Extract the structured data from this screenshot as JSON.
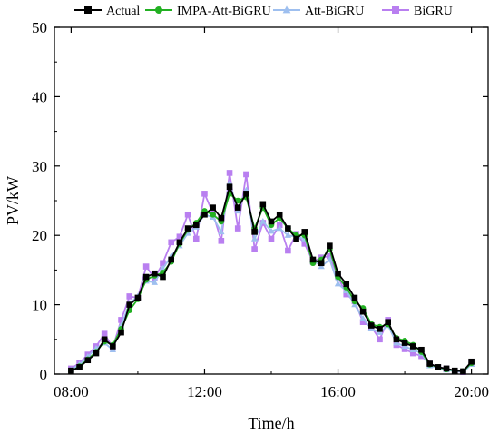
{
  "chart_data": {
    "type": "line",
    "title": "",
    "xlabel": "Time/h",
    "ylabel": "PV/kW",
    "xlim": [
      "07:30",
      "20:30"
    ],
    "ylim": [
      0,
      50
    ],
    "xticks": [
      "08:00",
      "12:00",
      "16:00",
      "20:00"
    ],
    "yticks": [
      0,
      10,
      20,
      30,
      40,
      50
    ],
    "grid": false,
    "legend": "top",
    "x": [
      "08:00",
      "08:15",
      "08:30",
      "08:45",
      "09:00",
      "09:15",
      "09:30",
      "09:45",
      "10:00",
      "10:15",
      "10:30",
      "10:45",
      "11:00",
      "11:15",
      "11:30",
      "11:45",
      "12:00",
      "12:15",
      "12:30",
      "12:45",
      "13:00",
      "13:15",
      "13:30",
      "13:45",
      "14:00",
      "14:15",
      "14:30",
      "14:45",
      "15:00",
      "15:15",
      "15:30",
      "15:45",
      "16:00",
      "16:15",
      "16:30",
      "16:45",
      "17:00",
      "17:15",
      "17:30",
      "17:45",
      "18:00",
      "18:15",
      "18:30",
      "18:45",
      "19:00",
      "19:15",
      "19:30",
      "19:45",
      "20:00"
    ],
    "series": [
      {
        "name": "Actual",
        "color": "#000000",
        "marker": "square",
        "values": [
          0.5,
          1.0,
          2.0,
          3.0,
          5.0,
          4.0,
          6.0,
          10.0,
          11.0,
          14.0,
          14.5,
          14.0,
          16.5,
          19.0,
          21.0,
          21.5,
          23.0,
          24.0,
          22.5,
          27.0,
          24.0,
          26.0,
          20.5,
          24.5,
          22.0,
          23.0,
          21.0,
          19.5,
          20.5,
          16.5,
          16.0,
          18.5,
          14.5,
          13.0,
          11.0,
          9.0,
          7.0,
          6.5,
          7.5,
          5.0,
          4.5,
          4.0,
          3.5,
          1.5,
          1.0,
          0.8,
          0.5,
          0.4,
          1.8
        ]
      },
      {
        "name": "IMPA-Att-BiGRU",
        "color": "#22b022",
        "marker": "circle",
        "values": [
          0.4,
          1.1,
          2.1,
          3.2,
          4.7,
          4.2,
          6.5,
          9.2,
          10.8,
          13.6,
          14.2,
          14.6,
          16.2,
          18.8,
          20.8,
          21.8,
          23.5,
          23.0,
          22.0,
          26.0,
          25.0,
          25.5,
          21.0,
          24.0,
          21.5,
          22.5,
          21.0,
          20.0,
          20.0,
          16.0,
          16.5,
          18.0,
          14.0,
          12.5,
          10.5,
          9.5,
          7.2,
          6.8,
          7.2,
          5.2,
          4.8,
          4.2,
          3.2,
          1.4,
          1.0,
          0.7,
          0.5,
          0.4,
          1.6
        ]
      },
      {
        "name": "Att-BiGRU",
        "color": "#9ebfef",
        "marker": "triangle",
        "values": [
          0.6,
          1.4,
          2.5,
          3.7,
          4.5,
          3.5,
          7.0,
          10.2,
          11.2,
          13.4,
          13.2,
          15.2,
          17.0,
          18.5,
          20.3,
          21.2,
          23.0,
          22.6,
          20.5,
          27.5,
          23.5,
          26.5,
          19.5,
          22.0,
          20.6,
          21.0,
          20.0,
          19.8,
          19.5,
          16.5,
          15.5,
          16.5,
          13.0,
          12.0,
          10.0,
          8.0,
          6.5,
          6.0,
          7.0,
          4.5,
          4.0,
          3.5,
          3.0,
          1.2,
          0.9,
          0.6,
          0.4,
          0.3,
          1.4
        ]
      },
      {
        "name": "BiGRU",
        "color": "#b97ff0",
        "marker": "square",
        "values": [
          0.8,
          1.6,
          2.8,
          4.0,
          5.8,
          3.8,
          7.8,
          11.2,
          11.0,
          15.5,
          13.8,
          16.0,
          19.0,
          19.8,
          23.0,
          19.5,
          26.0,
          23.2,
          19.2,
          29.0,
          21.0,
          28.8,
          18.0,
          21.8,
          19.5,
          21.5,
          17.8,
          20.2,
          18.8,
          16.2,
          16.8,
          17.0,
          14.0,
          11.5,
          10.5,
          7.5,
          6.8,
          5.0,
          7.8,
          4.2,
          3.6,
          3.0,
          2.6,
          1.5,
          1.0,
          0.8,
          0.4,
          0.3,
          1.7
        ]
      }
    ]
  }
}
